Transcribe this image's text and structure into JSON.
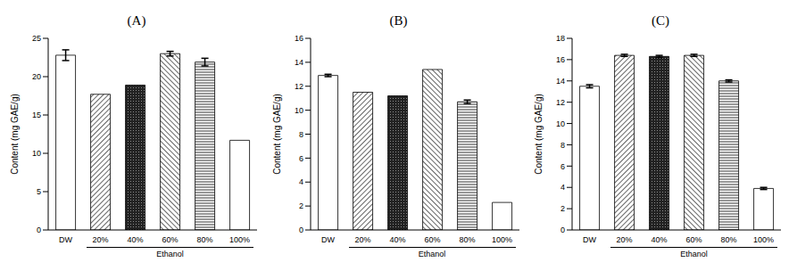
{
  "chart_data": [
    {
      "type": "bar",
      "title": "(A)",
      "y_label": "Content (mg GAE/g)",
      "categories": [
        "DW",
        "20%",
        "40%",
        "60%",
        "80%",
        "100%"
      ],
      "values": [
        22.8,
        17.7,
        18.9,
        23.0,
        21.9,
        11.7
      ],
      "errors": [
        0.7,
        0,
        0,
        0.3,
        0.5,
        0
      ],
      "ylim": [
        0,
        25
      ],
      "yticks": [
        0,
        5,
        10,
        15,
        20,
        25
      ],
      "grid": false,
      "annotations": [
        {
          "text": "Ethanol",
          "from": "20%",
          "to": "100%"
        }
      ]
    },
    {
      "type": "bar",
      "title": "(B)",
      "y_label": "Content (mg GAE/g)",
      "categories": [
        "DW",
        "20%",
        "40%",
        "60%",
        "80%",
        "100%"
      ],
      "values": [
        12.9,
        11.5,
        11.2,
        13.4,
        10.7,
        2.3
      ],
      "errors": [
        0.1,
        0,
        0,
        0,
        0.15,
        0
      ],
      "ylim": [
        0,
        16
      ],
      "yticks": [
        0,
        2,
        4,
        6,
        8,
        10,
        12,
        14,
        16
      ],
      "grid": false,
      "annotations": [
        {
          "text": "Ethanol",
          "from": "20%",
          "to": "100%"
        }
      ]
    },
    {
      "type": "bar",
      "title": "(C)",
      "y_label": "Content (mg GAE/g)",
      "categories": [
        "DW",
        "20%",
        "40%",
        "60%",
        "80%",
        "100%"
      ],
      "values": [
        13.5,
        16.4,
        16.3,
        16.4,
        14.0,
        3.9
      ],
      "errors": [
        0.15,
        0.1,
        0.1,
        0.1,
        0.1,
        0.1
      ],
      "ylim": [
        0,
        18
      ],
      "yticks": [
        0,
        2,
        4,
        6,
        8,
        10,
        12,
        14,
        16,
        18
      ],
      "grid": false,
      "annotations": [
        {
          "text": "Ethanol",
          "from": "20%",
          "to": "100%"
        }
      ]
    }
  ]
}
